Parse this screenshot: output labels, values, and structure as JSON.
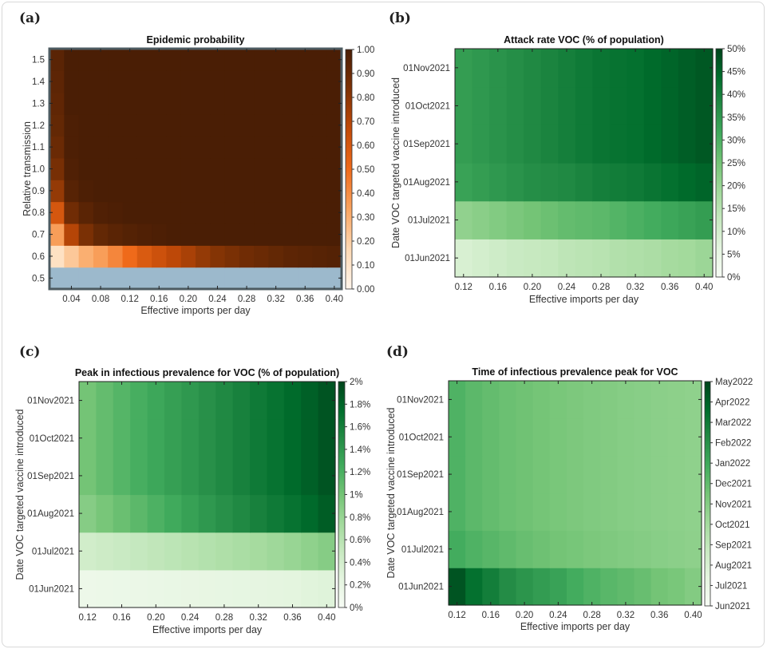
{
  "palettes": {
    "oranges": [
      "#fff5eb",
      "#fdd9b4",
      "#f9a460",
      "#ef6a1a",
      "#c24a08",
      "#7f3205",
      "#4a1e05"
    ],
    "greens": [
      "#f7fcf5",
      "#e5f5e0",
      "#c7e9c0",
      "#a1d99b",
      "#74c476",
      "#41ab5d",
      "#238b45",
      "#006d2c",
      "#00441b"
    ],
    "missing": "#9cb9cc",
    "frame_border_a": "#4d5b61"
  },
  "chart_data": [
    {
      "panel": "(a)",
      "type": "heatmap",
      "title": "Epidemic probability",
      "xlabel": "Effective imports per day",
      "ylabel": "Relative transmission",
      "palette": "oranges",
      "xlim": [
        0.01,
        0.41
      ],
      "ylim": [
        0.45,
        1.55
      ],
      "x": [
        0.02,
        0.04,
        0.06,
        0.08,
        0.1,
        0.12,
        0.14,
        0.16,
        0.18,
        0.2,
        0.22,
        0.24,
        0.26,
        0.28,
        0.3,
        0.32,
        0.34,
        0.36,
        0.38,
        0.4
      ],
      "y": [
        0.5,
        0.6,
        0.7,
        0.8,
        0.9,
        1.0,
        1.1,
        1.2,
        1.3,
        1.4,
        1.5
      ],
      "xticks": [
        "0.04",
        "0.08",
        "0.12",
        "0.16",
        "0.20",
        "0.24",
        "0.28",
        "0.32",
        "0.36",
        "0.40"
      ],
      "xtick_values": [
        0.04,
        0.08,
        0.12,
        0.16,
        0.2,
        0.24,
        0.28,
        0.32,
        0.36,
        0.4
      ],
      "yticks": [
        "0.5",
        "0.6",
        "0.7",
        "0.8",
        "0.9",
        "1.0",
        "1.1",
        "1.2",
        "1.3",
        "1.4",
        "1.5"
      ],
      "colorbar": {
        "range": [
          0,
          1
        ],
        "ticks": [
          "0.00",
          "0.10",
          "0.20",
          "0.30",
          "0.40",
          "0.50",
          "0.60",
          "0.70",
          "0.80",
          "0.90",
          "1.00"
        ]
      },
      "z": [
        [
          null,
          null,
          null,
          null,
          null,
          null,
          null,
          null,
          null,
          null,
          null,
          null,
          null,
          null,
          null,
          null,
          null,
          null,
          null,
          null
        ],
        [
          0.12,
          0.22,
          0.3,
          0.35,
          0.42,
          0.5,
          0.58,
          0.63,
          0.68,
          0.73,
          0.78,
          0.82,
          0.85,
          0.88,
          0.9,
          0.92,
          0.94,
          0.95,
          0.96,
          0.97
        ],
        [
          0.35,
          0.7,
          0.85,
          0.92,
          0.95,
          0.97,
          0.98,
          0.99,
          1,
          1,
          1,
          1,
          1,
          1,
          1,
          1,
          1,
          1,
          1,
          1
        ],
        [
          0.6,
          0.88,
          0.95,
          0.98,
          0.99,
          1,
          1,
          1,
          1,
          1,
          1,
          1,
          1,
          1,
          1,
          1,
          1,
          1,
          1,
          1
        ],
        [
          0.78,
          0.96,
          0.99,
          1,
          1,
          1,
          1,
          1,
          1,
          1,
          1,
          1,
          1,
          1,
          1,
          1,
          1,
          1,
          1,
          1
        ],
        [
          0.86,
          0.98,
          1,
          1,
          1,
          1,
          1,
          1,
          1,
          1,
          1,
          1,
          1,
          1,
          1,
          1,
          1,
          1,
          1,
          1
        ],
        [
          0.9,
          0.99,
          1,
          1,
          1,
          1,
          1,
          1,
          1,
          1,
          1,
          1,
          1,
          1,
          1,
          1,
          1,
          1,
          1,
          1
        ],
        [
          0.92,
          0.99,
          1,
          1,
          1,
          1,
          1,
          1,
          1,
          1,
          1,
          1,
          1,
          1,
          1,
          1,
          1,
          1,
          1,
          1
        ],
        [
          0.93,
          1,
          1,
          1,
          1,
          1,
          1,
          1,
          1,
          1,
          1,
          1,
          1,
          1,
          1,
          1,
          1,
          1,
          1,
          1
        ],
        [
          0.94,
          1,
          1,
          1,
          1,
          1,
          1,
          1,
          1,
          1,
          1,
          1,
          1,
          1,
          1,
          1,
          1,
          1,
          1,
          1
        ],
        [
          0.95,
          1,
          1,
          1,
          1,
          1,
          1,
          1,
          1,
          1,
          1,
          1,
          1,
          1,
          1,
          1,
          1,
          1,
          1,
          1
        ]
      ]
    },
    {
      "panel": "(b)",
      "type": "heatmap",
      "title": "Attack rate VOC (% of population)",
      "xlabel": "Effective imports per day",
      "ylabel": "Date VOC targeted vaccine introduced",
      "palette": "greens",
      "xlim": [
        0.11,
        0.41
      ],
      "x": [
        0.12,
        0.14,
        0.16,
        0.18,
        0.2,
        0.22,
        0.24,
        0.26,
        0.28,
        0.3,
        0.32,
        0.34,
        0.36,
        0.38,
        0.4
      ],
      "xticks": [
        "0.12",
        "0.16",
        "0.20",
        "0.24",
        "0.28",
        "0.32",
        "0.36",
        "0.40"
      ],
      "xtick_values": [
        0.12,
        0.16,
        0.2,
        0.24,
        0.28,
        0.32,
        0.36,
        0.4
      ],
      "yticks": [
        "01Jun2021",
        "01Jul2021",
        "01Aug2021",
        "01Sep2021",
        "01Oct2021",
        "01Nov2021"
      ],
      "colorbar": {
        "range": [
          0,
          50
        ],
        "ticks": [
          "0%",
          "5%",
          "10%",
          "15%",
          "20%",
          "25%",
          "30%",
          "35%",
          "40%",
          "45%",
          "50%"
        ]
      },
      "z": [
        [
          9,
          10,
          11,
          12,
          12.5,
          13,
          14,
          14.5,
          15,
          16,
          16.5,
          17,
          18,
          18.5,
          19.5
        ],
        [
          21,
          22,
          23,
          24,
          25,
          26,
          27,
          27.5,
          28,
          29,
          30,
          31,
          32,
          33,
          34
        ],
        [
          33,
          34,
          35,
          36,
          37,
          37.5,
          38,
          39,
          40,
          40.5,
          41,
          42,
          43,
          44,
          45
        ],
        [
          34,
          35,
          36,
          37,
          38,
          39,
          40,
          41,
          42,
          42.5,
          43,
          44,
          45,
          46,
          47
        ],
        [
          34,
          35,
          36,
          37,
          38,
          39,
          40,
          41,
          42,
          42.5,
          43,
          44,
          45,
          46,
          47
        ],
        [
          34,
          35,
          36,
          37,
          38,
          39,
          40,
          41,
          42,
          42.5,
          43,
          44,
          45,
          46,
          47
        ]
      ]
    },
    {
      "panel": "(c)",
      "type": "heatmap",
      "title": "Peak in infectious prevalence for VOC (% of population)",
      "xlabel": "Effective imports per day",
      "ylabel": "Date VOC targeted vaccine introduced",
      "palette": "greens",
      "xlim": [
        0.11,
        0.41
      ],
      "x": [
        0.12,
        0.14,
        0.16,
        0.18,
        0.2,
        0.22,
        0.24,
        0.26,
        0.28,
        0.3,
        0.32,
        0.34,
        0.36,
        0.38,
        0.4
      ],
      "xticks": [
        "0.12",
        "0.16",
        "0.20",
        "0.24",
        "0.28",
        "0.32",
        "0.36",
        "0.40"
      ],
      "xtick_values": [
        0.12,
        0.16,
        0.2,
        0.24,
        0.28,
        0.32,
        0.36,
        0.4
      ],
      "yticks": [
        "01Jun2021",
        "01Jul2021",
        "01Aug2021",
        "01Sep2021",
        "01Oct2021",
        "01Nov2021"
      ],
      "colorbar": {
        "range": [
          0,
          2
        ],
        "ticks": [
          "0%",
          "0.2%",
          "0.4%",
          "0.6%",
          "0.8%",
          "1%",
          "1.2%",
          "1.4%",
          "1.6%",
          "1.8%",
          "2%"
        ]
      },
      "z": [
        [
          0.14,
          0.15,
          0.16,
          0.17,
          0.18,
          0.19,
          0.2,
          0.21,
          0.22,
          0.23,
          0.24,
          0.25,
          0.26,
          0.28,
          0.3
        ],
        [
          0.42,
          0.45,
          0.48,
          0.51,
          0.54,
          0.57,
          0.6,
          0.63,
          0.66,
          0.69,
          0.72,
          0.76,
          0.8,
          0.85,
          0.9
        ],
        [
          0.9,
          0.98,
          1.05,
          1.12,
          1.19,
          1.26,
          1.33,
          1.4,
          1.46,
          1.52,
          1.58,
          1.64,
          1.7,
          1.77,
          1.85
        ],
        [
          1.0,
          1.08,
          1.15,
          1.22,
          1.28,
          1.34,
          1.4,
          1.46,
          1.52,
          1.58,
          1.64,
          1.7,
          1.76,
          1.83,
          1.9
        ],
        [
          1.0,
          1.08,
          1.15,
          1.22,
          1.28,
          1.34,
          1.4,
          1.46,
          1.52,
          1.58,
          1.64,
          1.7,
          1.76,
          1.83,
          1.9
        ],
        [
          1.0,
          1.08,
          1.15,
          1.22,
          1.28,
          1.34,
          1.4,
          1.46,
          1.52,
          1.58,
          1.64,
          1.7,
          1.76,
          1.83,
          1.9
        ]
      ]
    },
    {
      "panel": "(d)",
      "type": "heatmap",
      "title": "Time of infectious prevalence peak for VOC",
      "xlabel": "Effective imports per day",
      "ylabel": "Date VOC targeted vaccine introduced",
      "palette": "greens",
      "xlim": [
        0.11,
        0.41
      ],
      "x": [
        0.12,
        0.14,
        0.16,
        0.18,
        0.2,
        0.22,
        0.24,
        0.26,
        0.28,
        0.3,
        0.32,
        0.34,
        0.36,
        0.38,
        0.4
      ],
      "xticks": [
        "0.12",
        "0.16",
        "0.20",
        "0.24",
        "0.28",
        "0.32",
        "0.36",
        "0.40"
      ],
      "xtick_values": [
        0.12,
        0.16,
        0.2,
        0.24,
        0.28,
        0.32,
        0.36,
        0.4
      ],
      "yticks": [
        "01Jun2021",
        "01Jul2021",
        "01Aug2021",
        "01Sep2021",
        "01Oct2021",
        "01Nov2021"
      ],
      "colorbar": {
        "range": [
          "2021-06-01",
          "2022-05-01"
        ],
        "ticks": [
          "Jun2021",
          "Jul2021",
          "Aug2021",
          "Sep2021",
          "Oct2021",
          "Nov2021",
          "Dec2021",
          "Jan2022",
          "Feb2022",
          "Mar2022",
          "Apr2022",
          "May2022"
        ]
      },
      "z": [
        [
          "2022-04-15",
          "2022-03-15",
          "2022-02-25",
          "2022-02-05",
          "2022-01-25",
          "2022-01-15",
          "2022-01-07",
          "2021-12-25",
          "2021-12-15",
          "2021-12-07",
          "2021-12-01",
          "2021-11-25",
          "2021-11-15",
          "2021-11-10",
          "2021-11-01"
        ],
        [
          "2021-12-25",
          "2021-12-15",
          "2021-12-08",
          "2021-12-01",
          "2021-11-25",
          "2021-11-20",
          "2021-11-15",
          "2021-11-12",
          "2021-11-08",
          "2021-11-05",
          "2021-11-02",
          "2021-10-30",
          "2021-10-27",
          "2021-10-25",
          "2021-10-22"
        ],
        [
          "2021-12-15",
          "2021-12-05",
          "2021-11-28",
          "2021-11-22",
          "2021-11-18",
          "2021-11-14",
          "2021-11-10",
          "2021-11-07",
          "2021-11-04",
          "2021-11-01",
          "2021-10-29",
          "2021-10-27",
          "2021-10-25",
          "2021-10-23",
          "2021-10-21"
        ],
        [
          "2021-12-15",
          "2021-12-05",
          "2021-11-28",
          "2021-11-22",
          "2021-11-18",
          "2021-11-14",
          "2021-11-10",
          "2021-11-07",
          "2021-11-04",
          "2021-11-01",
          "2021-10-29",
          "2021-10-27",
          "2021-10-25",
          "2021-10-23",
          "2021-10-21"
        ],
        [
          "2021-12-15",
          "2021-12-05",
          "2021-11-28",
          "2021-11-22",
          "2021-11-18",
          "2021-11-14",
          "2021-11-10",
          "2021-11-07",
          "2021-11-04",
          "2021-11-01",
          "2021-10-29",
          "2021-10-27",
          "2021-10-25",
          "2021-10-23",
          "2021-10-21"
        ],
        [
          "2021-12-15",
          "2021-12-05",
          "2021-11-28",
          "2021-11-22",
          "2021-11-18",
          "2021-11-14",
          "2021-11-10",
          "2021-11-07",
          "2021-11-04",
          "2021-11-01",
          "2021-10-29",
          "2021-10-27",
          "2021-10-25",
          "2021-10-23",
          "2021-10-21"
        ]
      ]
    }
  ]
}
